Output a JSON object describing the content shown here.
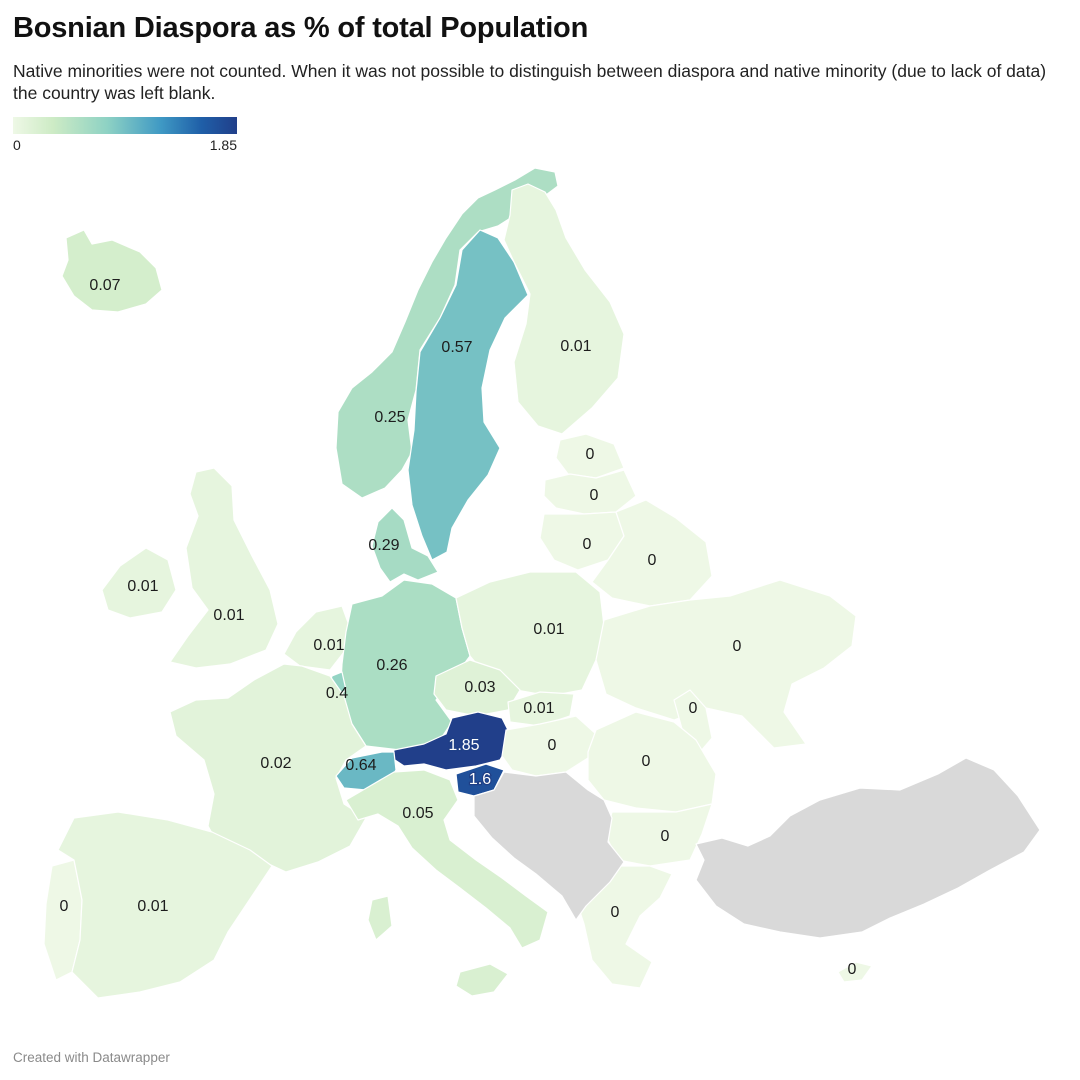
{
  "title": "Bosnian Diaspora as % of total Population",
  "subtitle": "Native minorities were not counted. When it was not possible to distinguish between diaspora and native minority (due to lack of data) the country was left blank.",
  "legend": {
    "min": "0",
    "max": "1.85"
  },
  "footer": "Created with Datawrapper",
  "colors": {
    "scale_low": "#eef8e6",
    "scale_mid": "#8ed2c4",
    "scale_high": "#213f8a",
    "no_data": "#d9d9d9"
  },
  "regions": [
    {
      "id": "iceland",
      "value": 0.07,
      "label": "0.07"
    },
    {
      "id": "norway",
      "value": 0.25,
      "label": "0.25"
    },
    {
      "id": "sweden",
      "value": 0.57,
      "label": "0.57"
    },
    {
      "id": "finland",
      "value": 0.01,
      "label": "0.01"
    },
    {
      "id": "estonia",
      "value": 0,
      "label": "0"
    },
    {
      "id": "latvia",
      "value": 0,
      "label": "0"
    },
    {
      "id": "lithuania",
      "value": 0,
      "label": "0"
    },
    {
      "id": "belarus",
      "value": 0,
      "label": "0"
    },
    {
      "id": "denmark",
      "value": 0.29,
      "label": "0.29"
    },
    {
      "id": "ireland",
      "value": 0.01,
      "label": "0.01"
    },
    {
      "id": "united-kingdom",
      "value": 0.01,
      "label": "0.01"
    },
    {
      "id": "netherlands",
      "value": 0.01,
      "label": "0.01"
    },
    {
      "id": "germany",
      "value": 0.26,
      "label": "0.26"
    },
    {
      "id": "poland",
      "value": 0.01,
      "label": "0.01"
    },
    {
      "id": "ukraine",
      "value": 0,
      "label": "0"
    },
    {
      "id": "luxembourg",
      "value": 0.4,
      "label": "0.4"
    },
    {
      "id": "czechia",
      "value": 0.03,
      "label": "0.03"
    },
    {
      "id": "slovakia",
      "value": 0.01,
      "label": "0.01"
    },
    {
      "id": "moldova",
      "value": 0,
      "label": "0"
    },
    {
      "id": "austria",
      "value": 1.85,
      "label": "1.85"
    },
    {
      "id": "hungary",
      "value": 0,
      "label": "0"
    },
    {
      "id": "france",
      "value": 0.02,
      "label": "0.02"
    },
    {
      "id": "switzerland",
      "value": 0.64,
      "label": "0.64"
    },
    {
      "id": "slovenia",
      "value": 1.6,
      "label": "1.6"
    },
    {
      "id": "romania",
      "value": 0,
      "label": "0"
    },
    {
      "id": "italy",
      "value": 0.05,
      "label": "0.05"
    },
    {
      "id": "bulgaria",
      "value": 0,
      "label": "0"
    },
    {
      "id": "portugal",
      "value": 0,
      "label": "0"
    },
    {
      "id": "spain",
      "value": 0.01,
      "label": "0.01"
    },
    {
      "id": "greece",
      "value": 0,
      "label": "0"
    },
    {
      "id": "cyprus",
      "value": 0,
      "label": "0"
    },
    {
      "id": "balkans",
      "value": null,
      "label": ""
    },
    {
      "id": "turkey",
      "value": null,
      "label": ""
    }
  ]
}
